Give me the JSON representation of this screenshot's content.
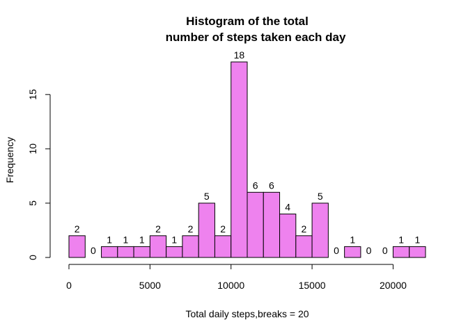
{
  "chart_data": {
    "type": "bar",
    "title_line1": "Histogram of the total",
    "title_line2": "number of steps taken each day",
    "xlabel": "Total daily steps,breaks = 20",
    "ylabel": "Frequency",
    "bin_edges": [
      0,
      1000,
      2000,
      3000,
      4000,
      5000,
      6000,
      7000,
      8000,
      9000,
      10000,
      11000,
      12000,
      13000,
      14000,
      15000,
      16000,
      17000,
      18000,
      19000,
      20000,
      21000,
      22000
    ],
    "values": [
      2,
      0,
      1,
      1,
      1,
      2,
      1,
      2,
      5,
      2,
      18,
      6,
      6,
      4,
      2,
      5,
      0,
      1,
      0,
      0,
      1,
      1
    ],
    "data_labels": [
      "2",
      "0",
      "1",
      "1",
      "1",
      "2",
      "1",
      "2",
      "5",
      "2",
      "18",
      "6",
      "6",
      "4",
      "2",
      "5",
      "0",
      "1",
      "0",
      "0",
      "1",
      "1"
    ],
    "xticks": [
      0,
      5000,
      10000,
      15000,
      20000
    ],
    "xtick_labels": [
      "0",
      "5000",
      "10000",
      "15000",
      "20000"
    ],
    "yticks": [
      0,
      5,
      10,
      15
    ],
    "ytick_labels": [
      "0",
      "5",
      "10",
      "15"
    ],
    "xlim": [
      0,
      22000
    ],
    "ylim": [
      0,
      18
    ],
    "bar_color": "#ee82ee",
    "bar_border": "#000000",
    "grid": false
  }
}
